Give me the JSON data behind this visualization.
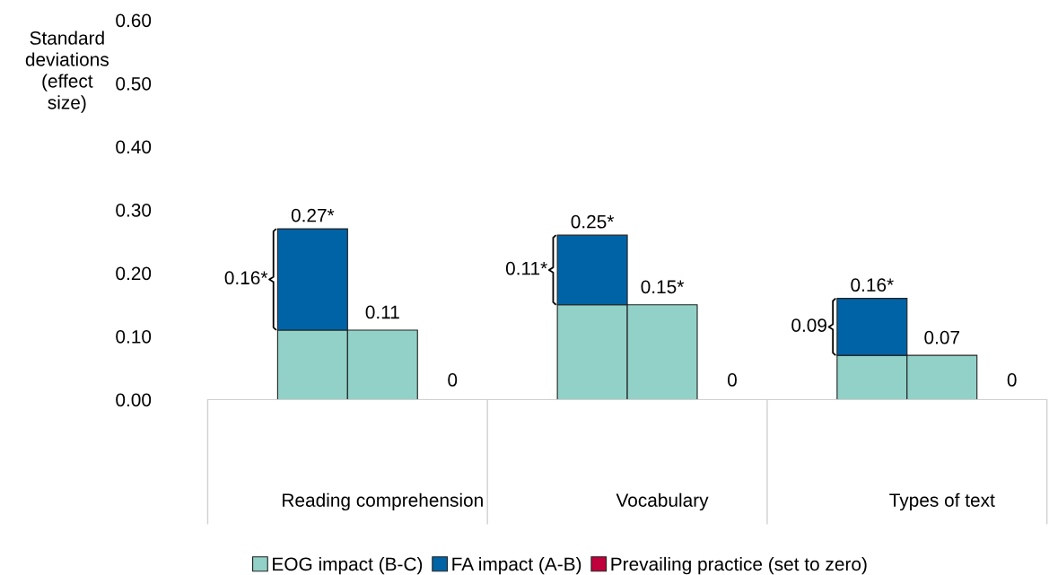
{
  "chart_data": {
    "type": "bar",
    "stacked": true,
    "ylabel": "Standard\ndeviations\n(effect\nsize)",
    "categories": [
      null,
      null,
      "Reading comprehension",
      null,
      null,
      null,
      "Vocabulary",
      null,
      null,
      null,
      "Types of text",
      null
    ],
    "series": [
      {
        "name": "EOG impact (B-C)",
        "color": "#91d1c8",
        "values": [
          null,
          0.11,
          0.11,
          null,
          null,
          0.15,
          0.15,
          null,
          null,
          0.07,
          0.07,
          null
        ],
        "value_labels": [
          null,
          null,
          "0.11",
          null,
          null,
          null,
          "0.15*",
          null,
          null,
          null,
          "0.07",
          null
        ]
      },
      {
        "name": "FA impact (A-B)",
        "color": "#0063a5",
        "values": [
          null,
          0.16,
          null,
          null,
          null,
          0.11,
          null,
          null,
          null,
          0.09,
          null,
          null
        ]
      },
      {
        "name": "Prevailing practice (set to zero)",
        "color": "#c0003c",
        "values": [
          null,
          null,
          null,
          0,
          null,
          null,
          null,
          0,
          null,
          null,
          null,
          0
        ],
        "value_labels": [
          null,
          null,
          null,
          "0",
          null,
          null,
          null,
          "0",
          null,
          null,
          null,
          "0"
        ]
      }
    ],
    "totals": [
      null,
      "0.27*",
      null,
      null,
      null,
      "0.25*",
      null,
      null,
      null,
      "0.16*",
      null,
      null
    ],
    "ylim": [
      0,
      0.6
    ],
    "yticks": [
      {
        "value": 0,
        "label": "0.00"
      },
      {
        "value": 0.1,
        "label": "0.10"
      },
      {
        "value": 0.2,
        "label": "0.20"
      },
      {
        "value": 0.3,
        "label": "0.30"
      },
      {
        "value": 0.4,
        "label": "0.40"
      },
      {
        "value": 0.5,
        "label": "0.50"
      },
      {
        "value": 0.6,
        "label": "0.60"
      }
    ],
    "annotations": [
      "0.16*",
      "0.11*",
      "0.09"
    ],
    "grid": false,
    "legend": "bottom"
  }
}
